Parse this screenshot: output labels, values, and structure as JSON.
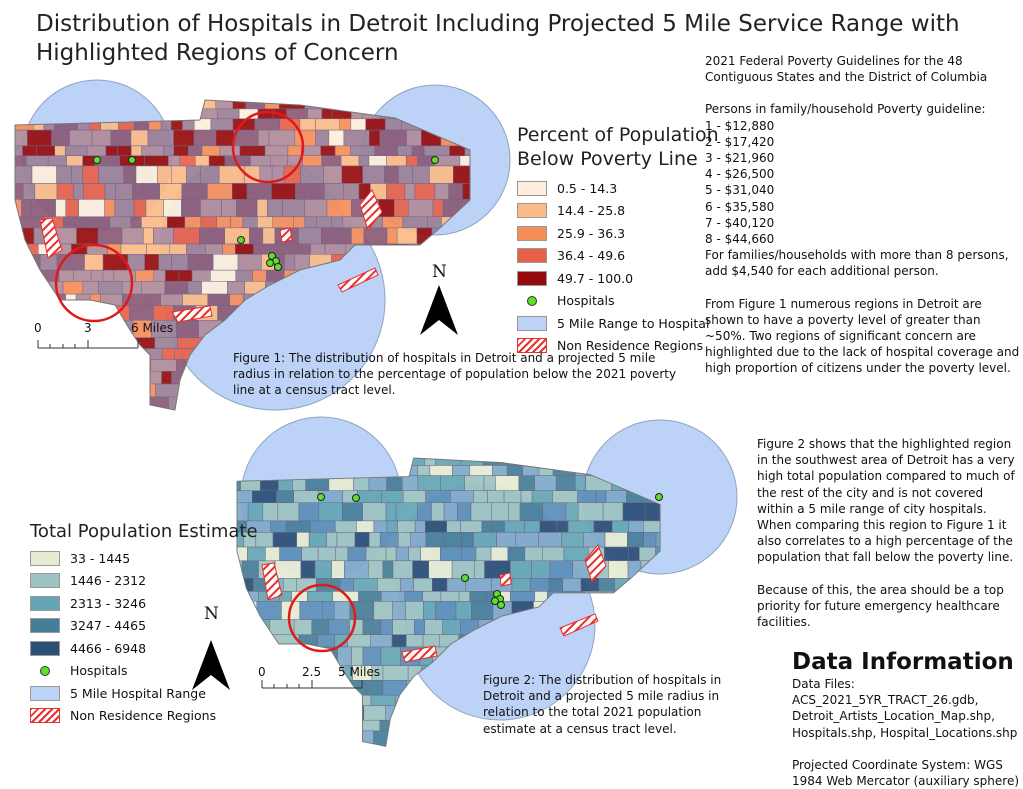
{
  "title": "Distribution of Hospitals in Detroit Including Projected 5 Mile Service Range with Highlighted Regions of Concern",
  "figure1": {
    "legend_title_line1": "Percent of Population",
    "legend_title_line2": "Below Poverty Line",
    "classes": [
      {
        "label": "0.5 - 14.3",
        "color": "#fdeedc"
      },
      {
        "label": "14.4 - 25.8",
        "color": "#fbbb88"
      },
      {
        "label": "25.9 - 36.3",
        "color": "#f68e5a"
      },
      {
        "label": "36.4 - 49.6",
        "color": "#e7604a"
      },
      {
        "label": "49.7 - 100.0",
        "color": "#960a0c"
      }
    ],
    "hospitals_label": "Hospitals",
    "range_label": "5 Mile Range to Hospital",
    "nonres_label": "Non Residence Regions",
    "scale": {
      "t0": "0",
      "t1": "3",
      "t2": "6 Miles"
    },
    "north": "N",
    "caption": "Figure 1: The distribution of hospitals in Detroit and a projected 5 mile radius in relation to the percentage of population below the 2021 poverty line at a census tract level."
  },
  "figure2": {
    "legend_title": "Total Population Estimate",
    "classes": [
      {
        "label": "33 - 1445",
        "color": "#e6ecd2"
      },
      {
        "label": "1446 - 2312",
        "color": "#9dc3c1"
      },
      {
        "label": "2313 - 3246",
        "color": "#64a6b4"
      },
      {
        "label": "3247 - 4465",
        "color": "#467e99"
      },
      {
        "label": "4466 - 6948",
        "color": "#2c4f78"
      }
    ],
    "hospitals_label": "Hospitals",
    "range_label": "5 Mile Hospital Range",
    "nonres_label": "Non Residence Regions",
    "scale": {
      "t0": "0",
      "t1": "2.5",
      "t2": "5 Miles"
    },
    "north": "N",
    "caption": "Figure 2: The distribution of hospitals in Detroit and a projected 5 mile radius in relation to the total 2021 population estimate at a census tract level."
  },
  "poverty_text": {
    "heading": "2021 Federal Poverty Guidelines for the 48 Contiguous States and the District of Columbia",
    "subheading": "Persons in family/household Poverty guideline:",
    "rows": [
      "1 - $12,880",
      "2 - $17,420",
      "3 - $21,960",
      "4 - $26,500",
      "5 - $31,040",
      "6 - $35,580",
      "7 - $40,120",
      "8 - $44,660"
    ],
    "note": "For families/households with more than 8 persons, add $4,540 for each additional person.",
    "analysis": "From Figure 1 numerous regions in Detroit are shown to have a poverty level of greater than ~50%. Two regions of significant concern are highlighted due to the lack of hospital coverage and high proportion of citizens under the poverty level."
  },
  "figure2_text": {
    "p1": "Figure 2 shows that the highlighted region in the southwest area of Detroit has a very high total population compared to much of the rest of the city and is not covered within a 5 mile range of city hospitals. When comparing this region to Figure 1 it also correlates to a high percentage of the population that fall below the poverty line.",
    "p2": "Because of this, the area should be a top priority for future emergency healthcare facilities."
  },
  "data_info": {
    "heading": "Data Information",
    "files_label": "Data Files:",
    "files": [
      "ACS_2021_5YR_TRACT_26.gdb,",
      "Detroit_Artists_Location_Map.shp,",
      "Hospitals.shp, Hospital_Locations.shp"
    ],
    "crs": "Projected Coordinate System: WGS 1984 Web Mercator (auxiliary sphere)"
  },
  "colors": {
    "range": "#bcd3f7",
    "hospital": "#5de02a",
    "highlight": "#e0191b"
  }
}
